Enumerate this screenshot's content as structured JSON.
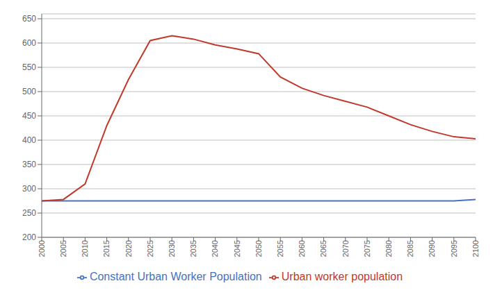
{
  "chart_data": {
    "type": "line",
    "x": [
      2000,
      2005,
      2010,
      2015,
      2020,
      2025,
      2030,
      2035,
      2040,
      2045,
      2050,
      2055,
      2060,
      2065,
      2070,
      2075,
      2080,
      2085,
      2090,
      2095,
      2100
    ],
    "series": [
      {
        "name": "Constant Urban Worker Population",
        "color": "#4472c4",
        "values": [
          275,
          275,
          275,
          275,
          275,
          275,
          275,
          275,
          275,
          275,
          275,
          275,
          275,
          275,
          275,
          275,
          275,
          275,
          275,
          275,
          278
        ]
      },
      {
        "name": "Urban worker population",
        "color": "#c0392b",
        "values": [
          275,
          278,
          310,
          430,
          525,
          605,
          615,
          608,
          596,
          588,
          578,
          530,
          507,
          492,
          480,
          468,
          450,
          432,
          418,
          407,
          403
        ]
      }
    ],
    "xlim": [
      2000,
      2100
    ],
    "xticks": [
      2000,
      2005,
      2010,
      2015,
      2020,
      2025,
      2030,
      2035,
      2040,
      2045,
      2050,
      2055,
      2060,
      2065,
      2070,
      2075,
      2080,
      2085,
      2090,
      2095,
      2100
    ],
    "ylim": [
      200,
      660
    ],
    "yticks": [
      200,
      250,
      300,
      350,
      400,
      450,
      500,
      550,
      600,
      650
    ],
    "grid": "y",
    "legend": "bottom"
  }
}
